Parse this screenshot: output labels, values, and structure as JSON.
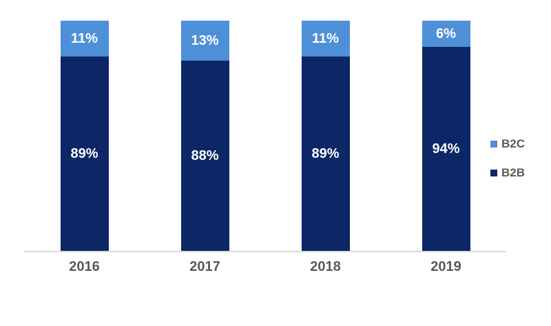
{
  "chart_data": {
    "type": "bar",
    "variant": "100-percent-stacked-column",
    "title": "",
    "xlabel": "",
    "ylabel": "",
    "categories": [
      "2016",
      "2017",
      "2018",
      "2019"
    ],
    "series": [
      {
        "name": "B2C",
        "position": "top",
        "values": [
          11,
          13,
          11,
          6
        ],
        "labels": [
          "11%",
          "13%",
          "11%",
          "6%"
        ],
        "color": "#4e90d8"
      },
      {
        "name": "B2B",
        "position": "bottom",
        "values": [
          89,
          88,
          89,
          94
        ],
        "labels": [
          "89%",
          "88%",
          "89%",
          "94%"
        ],
        "color": "#0d2666"
      }
    ],
    "legend": {
      "position": "right",
      "entries": [
        "B2C",
        "B2B"
      ]
    },
    "style": {
      "data_label_color": "#ffffff",
      "axis_label_color": "#595959",
      "baseline_color": "#d9d9d9",
      "background": "#ffffff",
      "grid": "off"
    }
  }
}
